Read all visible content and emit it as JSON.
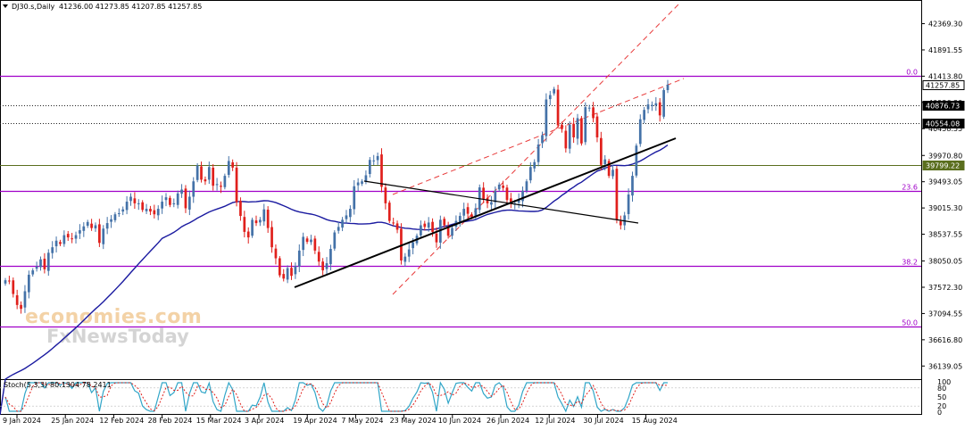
{
  "header": {
    "symbol_label": "DJ30.s,Daily",
    "ohlc_text": "41236.00 41273.85 41207.85 41257.85"
  },
  "oscillator": {
    "label": "Stoch(5,3,3)",
    "values_text": "80.1304 78.2411",
    "ticks": [
      "100",
      "80",
      "50",
      "20",
      "0"
    ]
  },
  "watermark": {
    "line1": "economies.com",
    "line2": "FxNewsToday"
  },
  "colors": {
    "bull": "#4472a8",
    "bear": "#e0201c",
    "fib": "#a000c8",
    "ma": "#1a1aa0",
    "trend": "#000000",
    "channel": "#e83a3a",
    "stoch_k": "#31a6c8",
    "stoch_d": "#e0201c",
    "resistance": "#5a6e1e"
  },
  "chart_data": {
    "type": "candlestick",
    "symbol": "DJ30.s",
    "timeframe": "Daily",
    "y_axis": {
      "range": [
        35900,
        42800
      ],
      "ticks": [
        "42369.30",
        "41891.55",
        "41413.80",
        "40936.30",
        "40458.55",
        "39970.80",
        "39493.05",
        "39015.30",
        "38537.55",
        "38050.05",
        "37572.30",
        "37094.55",
        "36616.80",
        "36139.05"
      ]
    },
    "x_axis": {
      "labels": [
        "9 Jan 2024",
        "25 Jan 2024",
        "12 Feb 2024",
        "28 Feb 2024",
        "15 Mar 2024",
        "3 Apr 2024",
        "19 Apr 2024",
        "7 May 2024",
        "23 May 2024",
        "10 Jun 2024",
        "26 Jun 2024",
        "12 Jul 2024",
        "30 Jul 2024",
        "15 Aug 2024"
      ]
    },
    "price_levels": [
      {
        "value": "41257.85",
        "style": "current"
      },
      {
        "value": "40876.73",
        "style": "dotted"
      },
      {
        "value": "40554.08",
        "style": "dotted"
      },
      {
        "value": "39799.22",
        "style": "resistance"
      }
    ],
    "fibonacci": [
      {
        "label": "0.0",
        "price": 41413.8
      },
      {
        "label": "23.6",
        "price": 39330
      },
      {
        "label": "38.2",
        "price": 37960
      },
      {
        "label": "50.0",
        "price": 36860
      }
    ],
    "closes": [
      37700,
      37680,
      37450,
      37250,
      37180,
      37500,
      37800,
      37880,
      37950,
      38080,
      37900,
      38200,
      38300,
      38420,
      38360,
      38520,
      38480,
      38450,
      38520,
      38610,
      38680,
      38760,
      38650,
      38700,
      38380,
      38640,
      38740,
      38810,
      38900,
      38920,
      38990,
      39130,
      39220,
      39100,
      39100,
      38980,
      39000,
      38950,
      38900,
      39000,
      39130,
      39210,
      39070,
      39100,
      39280,
      39350,
      39010,
      39220,
      39500,
      39790,
      39530,
      39500,
      39760,
      39420,
      39450,
      39400,
      39600,
      39870,
      39750,
      39120,
      38870,
      38580,
      38480,
      38800,
      38740,
      38800,
      38990,
      38650,
      38300,
      38100,
      37790,
      37730,
      37920,
      37780,
      37960,
      38240,
      38490,
      38400,
      38440,
      38240,
      38040,
      37880,
      38010,
      38270,
      38570,
      38670,
      38800,
      38880,
      39000,
      39410,
      39480,
      39500,
      39610,
      39890,
      39880,
      39960,
      39400,
      39100,
      38780,
      38740,
      38620,
      38060,
      38130,
      38260,
      38390,
      38510,
      38700,
      38670,
      38750,
      38580,
      38390,
      38800,
      38700,
      38510,
      38650,
      38780,
      38870,
      39000,
      38910,
      38850,
      39010,
      39390,
      39180,
      39100,
      39120,
      39330,
      39440,
      39380,
      39160,
      39090,
      39100,
      39170,
      39330,
      39500,
      39760,
      39850,
      40170,
      40340,
      40990,
      41070,
      41180,
      40520,
      40450,
      40100,
      40530,
      40300,
      40650,
      40190,
      40850,
      40840,
      40650,
      40300,
      39800,
      39900,
      39600,
      39710,
      38800,
      38700,
      38880,
      39260,
      39600,
      40150,
      40630,
      40800,
      40900,
      40890,
      40920,
      40700,
      41160,
      41257.85
    ],
    "ma_100": {
      "approx_start": 35900,
      "approx_end": 39400
    },
    "trendlines": [
      "ascending support",
      "neckline",
      "rising channel"
    ],
    "stochastic": {
      "k": 80.1304,
      "d": 78.2411
    }
  }
}
